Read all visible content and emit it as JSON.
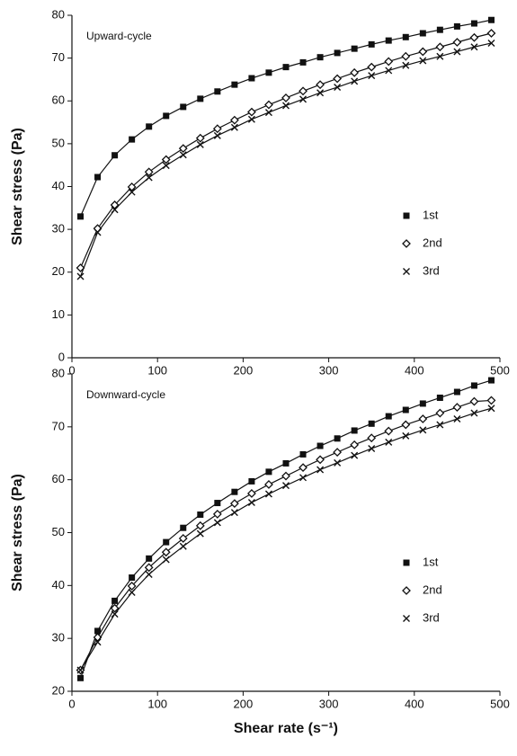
{
  "chart_data": [
    {
      "type": "scatter",
      "annotation": "Upward-cycle",
      "ylabel": "Shear stress (Pa)",
      "x": [
        10,
        30,
        50,
        70,
        90,
        110,
        130,
        150,
        170,
        190,
        210,
        230,
        250,
        270,
        290,
        310,
        330,
        350,
        370,
        390,
        410,
        430,
        450,
        470,
        490
      ],
      "xlim": [
        0,
        500
      ],
      "xticks": [
        0,
        100,
        200,
        300,
        400,
        500
      ],
      "ylim": [
        0,
        80
      ],
      "yticks": [
        0,
        10,
        20,
        30,
        40,
        50,
        60,
        70,
        80
      ],
      "fit_line": true,
      "legend": "right",
      "color": "#111111",
      "series": [
        {
          "name": "1st",
          "marker": "square",
          "values": [
            33,
            42.2,
            47.3,
            51.0,
            54.0,
            56.5,
            58.6,
            60.5,
            62.2,
            63.8,
            65.3,
            66.6,
            67.9,
            69.0,
            70.2,
            71.2,
            72.2,
            73.2,
            74.1,
            74.9,
            75.8,
            76.6,
            77.4,
            78.1,
            78.9
          ]
        },
        {
          "name": "2nd",
          "marker": "diamond",
          "values": [
            21.0,
            30.2,
            35.7,
            39.9,
            43.4,
            46.3,
            48.9,
            51.3,
            53.5,
            55.5,
            57.4,
            59.1,
            60.7,
            62.3,
            63.8,
            65.2,
            66.6,
            67.9,
            69.2,
            70.4,
            71.5,
            72.6,
            73.7,
            74.8,
            75.8
          ]
        },
        {
          "name": "3rd",
          "marker": "x",
          "values": [
            19,
            29.3,
            34.6,
            38.7,
            42.1,
            44.9,
            47.4,
            49.8,
            51.9,
            53.8,
            55.7,
            57.3,
            58.9,
            60.4,
            61.9,
            63.2,
            64.6,
            65.9,
            67.1,
            68.3,
            69.4,
            70.4,
            71.5,
            72.6,
            73.5
          ]
        }
      ]
    },
    {
      "type": "scatter",
      "annotation": "Downward-cycle",
      "ylabel": "Shear stress (Pa)",
      "xlabel": "Shear rate (s⁻¹)",
      "x": [
        10,
        30,
        50,
        70,
        90,
        110,
        130,
        150,
        170,
        190,
        210,
        230,
        250,
        270,
        290,
        310,
        330,
        350,
        370,
        390,
        410,
        430,
        450,
        470,
        490
      ],
      "xlim": [
        0,
        500
      ],
      "xticks": [
        0,
        100,
        200,
        300,
        400,
        500
      ],
      "ylim": [
        20,
        80
      ],
      "yticks": [
        20,
        30,
        40,
        50,
        60,
        70,
        80
      ],
      "fit_line": true,
      "legend": "right",
      "color": "#111111",
      "series": [
        {
          "name": "1st",
          "marker": "square",
          "values": [
            22.5,
            31.4,
            37.1,
            41.5,
            45.1,
            48.2,
            50.9,
            53.4,
            55.6,
            57.7,
            59.7,
            61.5,
            63.1,
            64.8,
            66.4,
            67.8,
            69.3,
            70.6,
            72.0,
            73.2,
            74.4,
            75.5,
            76.6,
            77.8,
            78.8
          ]
        },
        {
          "name": "2nd",
          "marker": "diamond",
          "values": [
            24.0,
            30.2,
            35.7,
            39.9,
            43.4,
            46.3,
            48.9,
            51.3,
            53.5,
            55.5,
            57.4,
            59.1,
            60.7,
            62.3,
            63.8,
            65.2,
            66.6,
            67.9,
            69.2,
            70.4,
            71.5,
            72.6,
            73.7,
            74.8,
            75.0
          ]
        },
        {
          "name": "3rd",
          "marker": "x",
          "values": [
            24.0,
            29.3,
            34.6,
            38.7,
            42.1,
            44.9,
            47.4,
            49.8,
            51.9,
            53.8,
            55.7,
            57.3,
            58.9,
            60.4,
            61.9,
            63.2,
            64.6,
            65.9,
            67.1,
            68.3,
            69.4,
            70.4,
            71.5,
            72.6,
            73.5
          ]
        }
      ]
    }
  ]
}
